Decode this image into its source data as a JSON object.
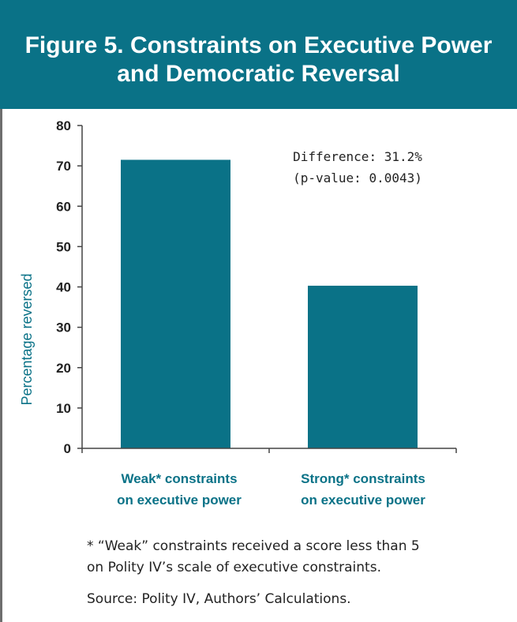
{
  "figure": {
    "title_line1": "Figure 5. Constraints on Executive Power",
    "title_line2": "and Democratic Reversal",
    "footnote_line1": "* “Weak” constraints received a score less than 5",
    "footnote_line2": "on Polity IV’s scale of executive constraints.",
    "source": "Source: Polity IV, Authors’ Calculations."
  },
  "colors": {
    "header_bg": "#0a7287",
    "bar": "#0a7287",
    "label_text": "#0a7287"
  },
  "chart_data": {
    "type": "bar",
    "categories": [
      [
        "Weak* constraints",
        "on executive power"
      ],
      [
        "Strong* constraints",
        "on executive power"
      ]
    ],
    "values": [
      71.5,
      40.3
    ],
    "title": "Figure 5. Constraints on Executive Power and Democratic Reversal",
    "xlabel": "",
    "ylabel": "Percentage reversed",
    "ylim": [
      0,
      80
    ],
    "yticks": [
      0,
      10,
      20,
      30,
      40,
      50,
      60,
      70,
      80
    ],
    "grid": false,
    "legend": "none",
    "annotations": [
      "Difference: 31.2%",
      "(p-value: 0.0043)"
    ]
  }
}
